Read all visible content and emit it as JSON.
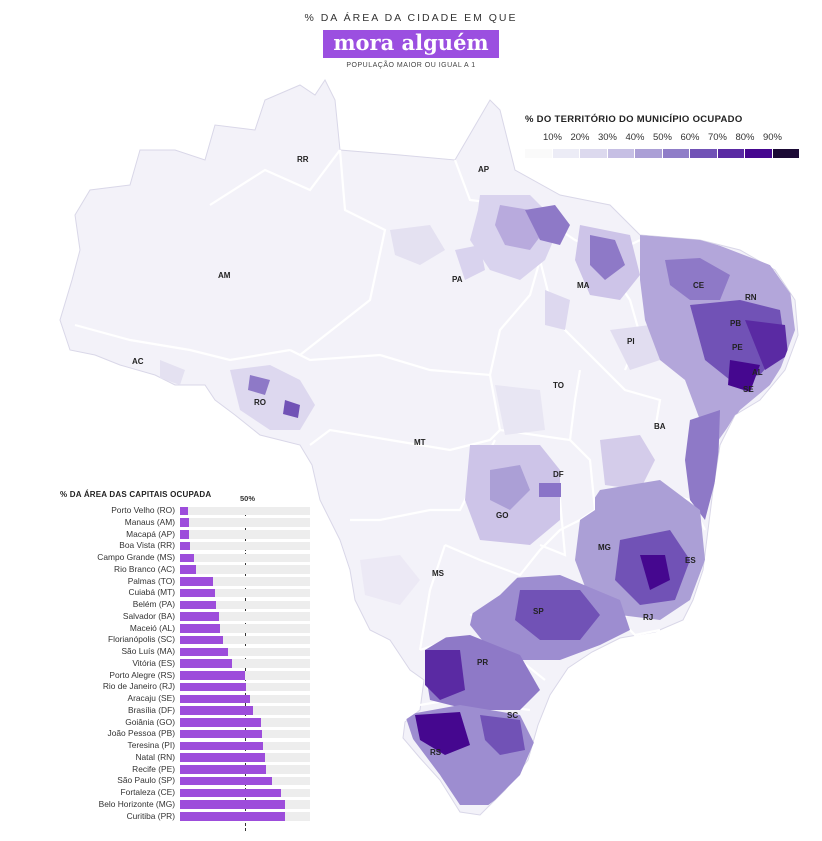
{
  "header": {
    "kicker": "% DA ÁREA DA CIDADE EM QUE",
    "title": "mora alguém",
    "subtitle": "POPULAÇÃO MAIOR OU IGUAL A 1"
  },
  "legend": {
    "title": "% DO TERRITÓRIO DO MUNICÍPIO OCUPADO",
    "labels": [
      "10%",
      "20%",
      "30%",
      "40%",
      "50%",
      "60%",
      "70%",
      "80%",
      "90%"
    ],
    "colors": [
      "#ffffff",
      "#ececf6",
      "#dcd9ee",
      "#c6bfe4",
      "#ab9fd6",
      "#8f7dc8",
      "#7152b6",
      "#5a2aa3",
      "#45078f",
      "#1b0a35"
    ]
  },
  "states": [
    "RR",
    "AP",
    "AM",
    "PA",
    "MA",
    "CE",
    "RN",
    "PB",
    "PE",
    "AL",
    "SE",
    "PI",
    "AC",
    "RO",
    "TO",
    "BA",
    "MT",
    "DF",
    "GO",
    "MG",
    "ES",
    "MS",
    "SP",
    "RJ",
    "PR",
    "SC",
    "RS"
  ],
  "chart_data": {
    "type": "bar",
    "title": "% DA ÁREA DAS CAPITAIS OCUPADA",
    "reference_label": "50%",
    "reference_value": 50,
    "xlim": [
      0,
      100
    ],
    "categories": [
      "Porto Velho (RO)",
      "Manaus (AM)",
      "Macapá (AP)",
      "Boa Vista (RR)",
      "Campo Grande (MS)",
      "Rio Branco (AC)",
      "Palmas (TO)",
      "Cuiabá (MT)",
      "Belém (PA)",
      "Salvador (BA)",
      "Maceió (AL)",
      "Florianópolis (SC)",
      "São Luís (MA)",
      "Vitória (ES)",
      "Porto Alegre (RS)",
      "Rio de Janeiro (RJ)",
      "Aracaju (SE)",
      "Brasília (DF)",
      "Goiânia (GO)",
      "João Pessoa (PB)",
      "Teresina (PI)",
      "Natal (RN)",
      "Recife (PE)",
      "São Paulo (SP)",
      "Fortaleza (CE)",
      "Belo Horizonte (MG)",
      "Curitiba (PR)"
    ],
    "values": [
      6,
      7,
      7,
      8,
      11,
      12,
      25,
      27,
      28,
      30,
      31,
      33,
      37,
      40,
      50,
      51,
      54,
      56,
      62,
      63,
      64,
      65,
      66,
      71,
      78,
      81,
      81
    ]
  }
}
